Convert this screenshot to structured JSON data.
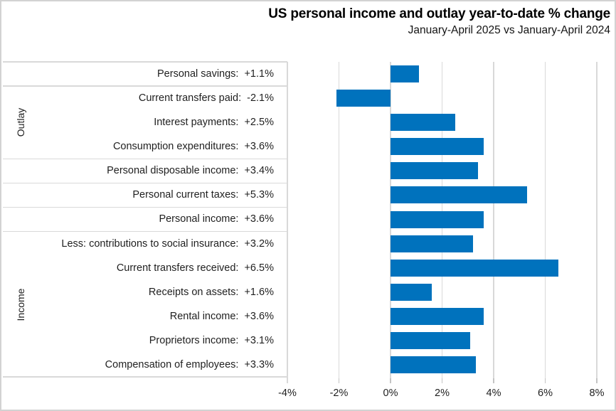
{
  "window": {
    "background": "#ffffff",
    "border_color": "#d2d2d2"
  },
  "header": {
    "title": "US personal income and outlay year-to-date % change",
    "subtitle": "January-April 2025 vs January-April 2024"
  },
  "chart_data": {
    "type": "bar",
    "orientation": "horizontal",
    "title": "US personal income and outlay year-to-date % change",
    "subtitle": "January-April 2025 vs January-April 2024",
    "unit": "%",
    "xlim": [
      -4,
      8
    ],
    "grid": true,
    "legend": "none",
    "bar_color": "#0072bd",
    "gridline_color": "#d9d9d9",
    "x_ticks": [
      {
        "v": -4,
        "label": "-4%"
      },
      {
        "v": -2,
        "label": "-2%"
      },
      {
        "v": 0,
        "label": "0%"
      },
      {
        "v": 2,
        "label": "2%"
      },
      {
        "v": 4,
        "label": "4%"
      },
      {
        "v": 6,
        "label": "6%"
      },
      {
        "v": 8,
        "label": "8%"
      }
    ],
    "groups": [
      {
        "label": "",
        "rows": [
          {
            "label": "Personal savings",
            "display": "+1.1%",
            "value": 1.1
          }
        ]
      },
      {
        "label": "Outlay",
        "rows": [
          {
            "label": "Current transfers paid",
            "display": "-2.1%",
            "value": -2.1
          },
          {
            "label": "Interest payments",
            "display": "+2.5%",
            "value": 2.5
          },
          {
            "label": "Consumption expenditures",
            "display": "+3.6%",
            "value": 3.6
          }
        ]
      },
      {
        "label": "",
        "rows": [
          {
            "label": "Personal disposable income",
            "display": "+3.4%",
            "value": 3.4
          }
        ]
      },
      {
        "label": "",
        "rows": [
          {
            "label": "Personal current taxes",
            "display": "+5.3%",
            "value": 5.3
          }
        ]
      },
      {
        "label": "",
        "rows": [
          {
            "label": "Personal income",
            "display": "+3.6%",
            "value": 3.6
          }
        ]
      },
      {
        "label": "Income",
        "rows": [
          {
            "label": "Less: contributions to social insurance",
            "display": "+3.2%",
            "value": 3.2
          },
          {
            "label": "Current transfers received",
            "display": "+6.5%",
            "value": 6.5
          },
          {
            "label": "Receipts on assets",
            "display": "+1.6%",
            "value": 1.6
          },
          {
            "label": "Rental income",
            "display": "+3.6%",
            "value": 3.6
          },
          {
            "label": "Proprietors income",
            "display": "+3.1%",
            "value": 3.1
          },
          {
            "label": "Compensation of employees",
            "display": "+3.3%",
            "value": 3.3
          }
        ]
      }
    ]
  }
}
